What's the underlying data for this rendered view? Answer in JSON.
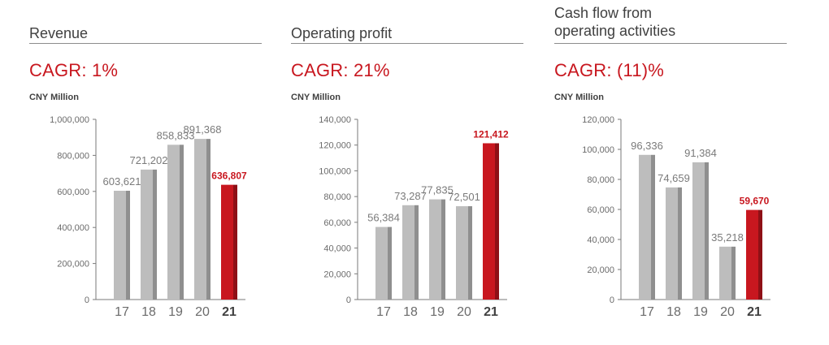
{
  "colors": {
    "bar": "#bdbdbd",
    "bar_shadow": "#8f8f8f",
    "highlight": "#c8171f",
    "highlight_shadow": "#8e1016",
    "axis": "#7a7a7a",
    "tick_text": "#6b6b6b",
    "value_text": "#7a7a7a",
    "accent_text": "#c8171f"
  },
  "chart_data": [
    {
      "type": "bar",
      "title": "Revenue",
      "subtitle": "CAGR: 1%",
      "ylabel": "CNY Million",
      "categories": [
        "17",
        "18",
        "19",
        "20",
        "21"
      ],
      "values": [
        603621,
        721202,
        858833,
        891368,
        636807
      ],
      "value_labels": [
        "603,621",
        "721,202",
        "858,833",
        "891,368",
        "636,807"
      ],
      "highlight_index": 4,
      "ylim": [
        0,
        1000000
      ],
      "yticks": [
        "0",
        "200,000",
        "400,000",
        "600,000",
        "800,000",
        "1,000,000"
      ],
      "grid": false
    },
    {
      "type": "bar",
      "title": "Operating profit",
      "subtitle": "CAGR: 21%",
      "ylabel": "CNY Million",
      "categories": [
        "17",
        "18",
        "19",
        "20",
        "21"
      ],
      "values": [
        56384,
        73287,
        77835,
        72501,
        121412
      ],
      "value_labels": [
        "56,384",
        "73,287",
        "77,835",
        "72,501",
        "121,412"
      ],
      "highlight_index": 4,
      "ylim": [
        0,
        140000
      ],
      "yticks": [
        "0",
        "20,000",
        "40,000",
        "60,000",
        "80,000",
        "100,000",
        "120,000",
        "140,000"
      ],
      "grid": false
    },
    {
      "type": "bar",
      "title": "Cash flow from\noperating activities",
      "subtitle": "CAGR: (11)%",
      "ylabel": "CNY Million",
      "categories": [
        "17",
        "18",
        "19",
        "20",
        "21"
      ],
      "values": [
        96336,
        74659,
        91384,
        35218,
        59670
      ],
      "value_labels": [
        "96,336",
        "74,659",
        "91,384",
        "35,218",
        "59,670"
      ],
      "highlight_index": 4,
      "ylim": [
        0,
        120000
      ],
      "yticks": [
        "0",
        "20,000",
        "40,000",
        "60,000",
        "80,000",
        "100,000",
        "120,000"
      ],
      "grid": false
    }
  ]
}
